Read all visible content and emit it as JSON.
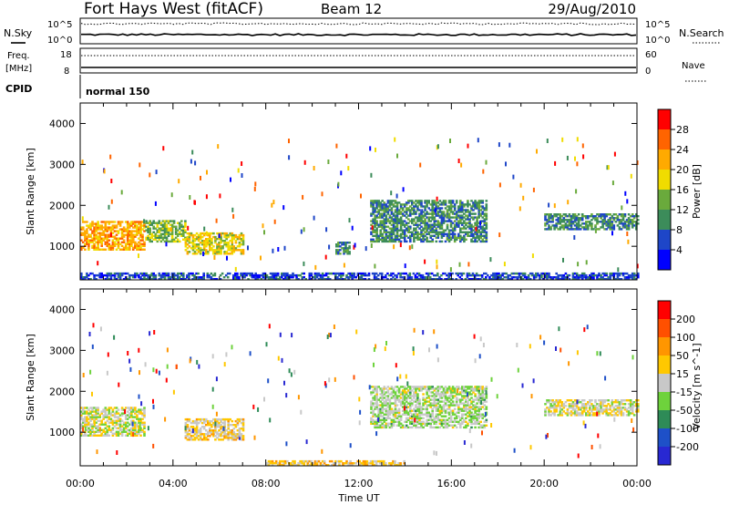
{
  "header": {
    "station": "Fort Hays West (fitACF)",
    "beam": "Beam 12",
    "date": "29/Aug/2010"
  },
  "noise_panel": {
    "left_label": "N.Sky",
    "right_label": "N.Search",
    "left_ticks": [
      "10^5",
      "10^0"
    ],
    "right_ticks": [
      "10^5",
      "10^0"
    ]
  },
  "freq_panel": {
    "left_label_1": "Freq.",
    "left_label_2": "[MHz]",
    "right_label": "Nave",
    "left_ticks": [
      "18",
      "8"
    ],
    "right_ticks": [
      "60",
      "0"
    ]
  },
  "cpid": {
    "label": "CPID",
    "mode": "normal 150"
  },
  "power_panel": {
    "ylabel": "Slant Range [km]",
    "yticks": [
      "4000",
      "3000",
      "2000",
      "1000"
    ],
    "colorbar_label": "Power [dB]",
    "colorbar_ticks": [
      "28",
      "24",
      "20",
      "16",
      "12",
      "8",
      "4"
    ],
    "colors": [
      "#0000ff",
      "#1e46c8",
      "#3c8c5a",
      "#6aaa3c",
      "#f0dc00",
      "#ffaa00",
      "#ff6400",
      "#ff0000"
    ]
  },
  "velocity_panel": {
    "ylabel": "Slant Range [km]",
    "yticks": [
      "4000",
      "3000",
      "2000",
      "1000"
    ],
    "colorbar_label": "Velocity [m s^-1]",
    "colorbar_ticks": [
      "200",
      "100",
      "50",
      "15",
      "-15",
      "-50",
      "-100",
      "-200"
    ],
    "colors": [
      "#2828d2",
      "#1e50c8",
      "#2e8b57",
      "#6ed23c",
      "#c8c8c8",
      "#ffc800",
      "#ff9600",
      "#ff5000",
      "#ff0000"
    ]
  },
  "x_axis": {
    "label": "Time UT",
    "ticks": [
      "00:00",
      "04:00",
      "08:00",
      "12:00",
      "16:00",
      "20:00",
      "00:00"
    ]
  },
  "chart_data": [
    {
      "type": "heatmap",
      "title": "Power",
      "xlabel": "Time UT",
      "ylabel": "Slant Range [km]",
      "x_range_hours": [
        0,
        24
      ],
      "ylim": [
        180,
        4500
      ],
      "zlabel": "Power [dB]",
      "zlim": [
        0,
        32
      ],
      "regions": [
        {
          "t": [
            0.0,
            2.8
          ],
          "r": [
            900,
            1600
          ],
          "value": 22
        },
        {
          "t": [
            2.8,
            4.5
          ],
          "r": [
            1100,
            1600
          ],
          "value": 14
        },
        {
          "t": [
            4.5,
            7.0
          ],
          "r": [
            800,
            1300
          ],
          "value": 18
        },
        {
          "t": [
            11.0,
            11.6
          ],
          "r": [
            800,
            1100
          ],
          "value": 10
        },
        {
          "t": [
            12.5,
            17.5
          ],
          "r": [
            1100,
            2100
          ],
          "value": 10
        },
        {
          "t": [
            20.0,
            24.0
          ],
          "r": [
            1400,
            1800
          ],
          "value": 10
        },
        {
          "t": [
            0.0,
            24.0
          ],
          "r": [
            180,
            350
          ],
          "value": 6
        }
      ]
    },
    {
      "type": "heatmap",
      "title": "Velocity",
      "xlabel": "Time UT",
      "ylabel": "Slant Range [km]",
      "x_range_hours": [
        0,
        24
      ],
      "ylim": [
        180,
        4500
      ],
      "zlabel": "Velocity [m s^-1]",
      "zlim": [
        -200,
        200
      ],
      "regions": [
        {
          "t": [
            0.0,
            2.8
          ],
          "r": [
            900,
            1600
          ],
          "value": 0
        },
        {
          "t": [
            4.5,
            7.0
          ],
          "r": [
            800,
            1300
          ],
          "value": -30
        },
        {
          "t": [
            12.5,
            17.5
          ],
          "r": [
            1100,
            2100
          ],
          "value": 20
        },
        {
          "t": [
            8.0,
            14.0
          ],
          "r": [
            180,
            300
          ],
          "value": -40
        },
        {
          "t": [
            20.0,
            24.0
          ],
          "r": [
            1400,
            1800
          ],
          "value": -10
        }
      ]
    }
  ]
}
